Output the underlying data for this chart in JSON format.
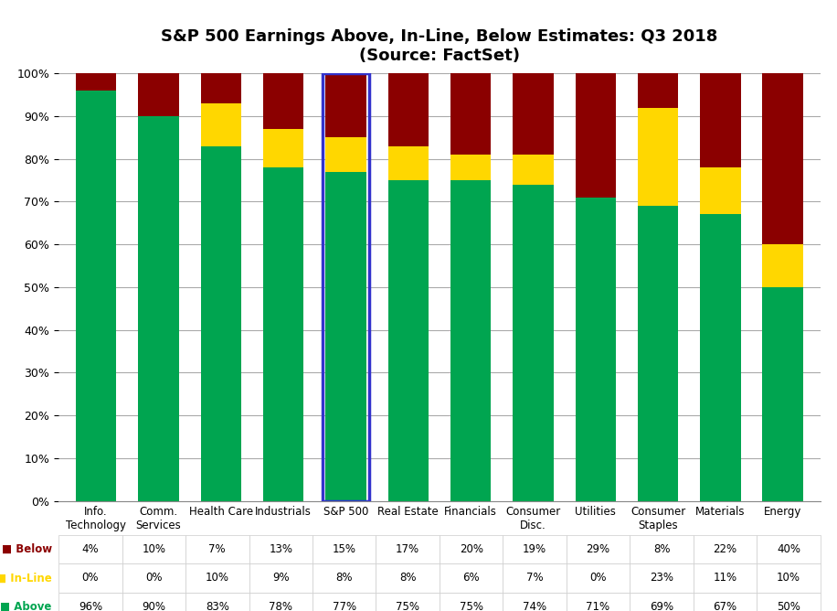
{
  "title_line1": "S&P 500 Earnings Above, In-Line, Below Estimates: Q3 2018",
  "title_line2": "(Source: FactSet)",
  "categories": [
    "Info.\nTechnology",
    "Comm.\nServices",
    "Health Care",
    "Industrials",
    "S&P 500",
    "Real Estate",
    "Financials",
    "Consumer\nDisc.",
    "Utilities",
    "Consumer\nStaples",
    "Materials",
    "Energy"
  ],
  "above": [
    96,
    90,
    83,
    78,
    77,
    75,
    75,
    74,
    71,
    69,
    67,
    50
  ],
  "inline": [
    0,
    0,
    10,
    9,
    8,
    8,
    6,
    7,
    0,
    23,
    11,
    10
  ],
  "below": [
    4,
    10,
    7,
    13,
    15,
    17,
    20,
    19,
    29,
    8,
    22,
    40
  ],
  "above_color": "#00A550",
  "inline_color": "#FFD700",
  "below_color": "#8B0000",
  "highlight_index": 4,
  "highlight_color": "#3333CC",
  "bar_width": 0.65,
  "background_color": "#FFFFFF",
  "grid_color": "#AAAAAA",
  "table_labels": [
    "Below",
    "In-Line",
    "Above"
  ],
  "table_colors": [
    "#8B0000",
    "#FFD700",
    "#00A550"
  ],
  "figsize": [
    9.16,
    6.68
  ],
  "dpi": 100
}
